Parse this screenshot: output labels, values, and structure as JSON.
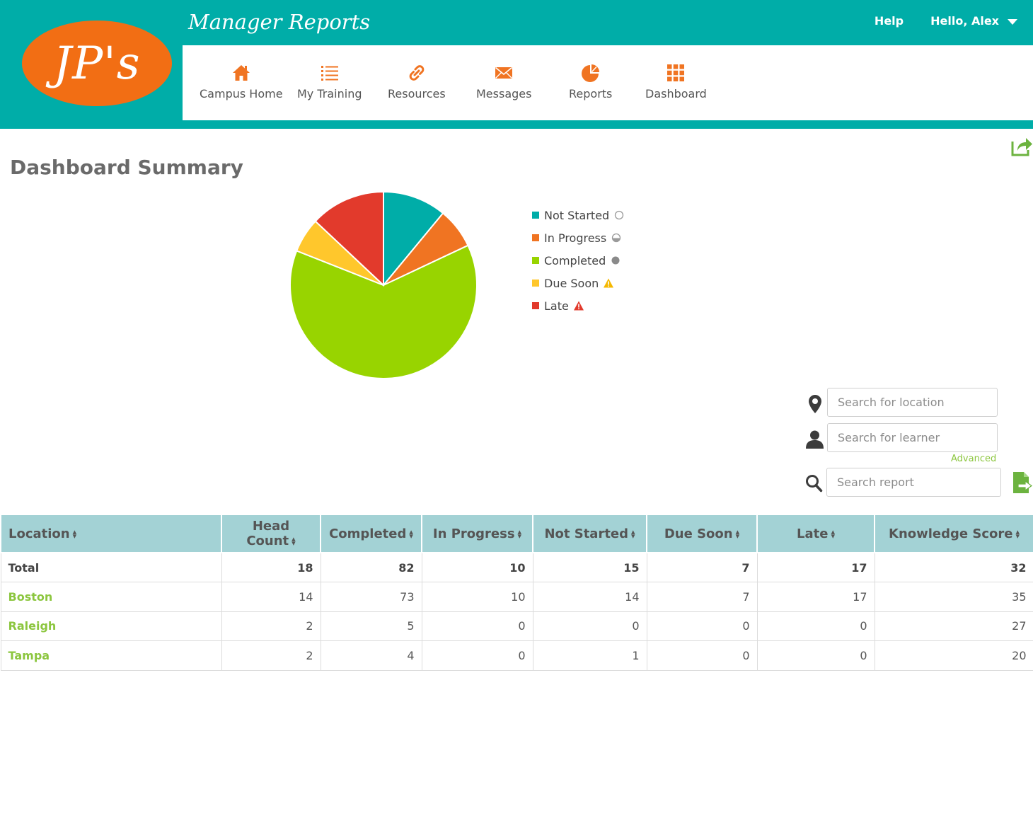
{
  "header": {
    "logo_text": "JP's",
    "title": "Manager Reports",
    "help_label": "Help",
    "user_greeting": "Hello, Alex"
  },
  "nav": [
    {
      "label": "Campus Home",
      "icon": "home-icon"
    },
    {
      "label": "My Training",
      "icon": "list-icon"
    },
    {
      "label": "Resources",
      "icon": "link-icon"
    },
    {
      "label": "Messages",
      "icon": "envelope-icon"
    },
    {
      "label": "Reports",
      "icon": "pie-chart-icon"
    },
    {
      "label": "Dashboard",
      "icon": "grid-icon"
    }
  ],
  "page": {
    "title": "Dashboard Summary"
  },
  "chart_data": {
    "type": "pie",
    "slices": [
      {
        "label": "Not Started",
        "value": 11,
        "color": "#00ada8"
      },
      {
        "label": "In Progress",
        "value": 7,
        "color": "#f07422"
      },
      {
        "label": "Completed",
        "value": 63,
        "color": "#98d400"
      },
      {
        "label": "Due Soon",
        "value": 6,
        "color": "#ffc72c"
      },
      {
        "label": "Late",
        "value": 13,
        "color": "#e23a2c"
      }
    ],
    "legend_position": "right"
  },
  "legend": [
    {
      "label": "Not Started",
      "color": "#00ada8",
      "symbol": "empty-circle-icon"
    },
    {
      "label": "In Progress",
      "color": "#f07422",
      "symbol": "half-circle-icon"
    },
    {
      "label": "Completed",
      "color": "#98d400",
      "symbol": "filled-circle-icon"
    },
    {
      "label": "Due Soon",
      "color": "#ffc72c",
      "symbol": "warning-yellow-icon"
    },
    {
      "label": "Late",
      "color": "#e23a2c",
      "symbol": "warning-red-icon"
    }
  ],
  "search": {
    "location_placeholder": "Search for location",
    "learner_placeholder": "Search for learner",
    "advanced_label": "Advanced",
    "report_placeholder": "Search report"
  },
  "table": {
    "columns": [
      "Location",
      "Head Count",
      "Completed",
      "In Progress",
      "Not Started",
      "Due Soon",
      "Late",
      "Knowledge Score"
    ],
    "rows": [
      {
        "location": "Total",
        "cells": [
          "18",
          "82",
          "10",
          "15",
          "7",
          "17",
          "32"
        ]
      },
      {
        "location": "Boston",
        "cells": [
          "14",
          "73",
          "10",
          "14",
          "7",
          "17",
          "35"
        ]
      },
      {
        "location": "Raleigh",
        "cells": [
          "2",
          "5",
          "0",
          "0",
          "0",
          "0",
          "27"
        ]
      },
      {
        "location": "Tampa",
        "cells": [
          "2",
          "4",
          "0",
          "1",
          "0",
          "0",
          "20"
        ]
      }
    ]
  }
}
